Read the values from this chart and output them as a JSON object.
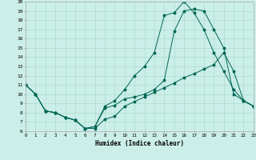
{
  "xlabel": "Humidex (Indice chaleur)",
  "bg_color": "#cceee8",
  "grid_color": "#aaddcc",
  "line_color": "#006655",
  "xlim": [
    0,
    23
  ],
  "ylim": [
    6,
    20
  ],
  "xticks": [
    0,
    1,
    2,
    3,
    4,
    5,
    6,
    7,
    8,
    9,
    10,
    11,
    12,
    13,
    14,
    15,
    16,
    17,
    18,
    19,
    20,
    21,
    22,
    23
  ],
  "yticks": [
    6,
    7,
    8,
    9,
    10,
    11,
    12,
    13,
    14,
    15,
    16,
    17,
    18,
    19,
    20
  ],
  "curve1_x": [
    0,
    1,
    2,
    3,
    4,
    5,
    6,
    7,
    8,
    9,
    10,
    11,
    12,
    13,
    14,
    15,
    16,
    17,
    18,
    19,
    20,
    21,
    22,
    23
  ],
  "curve1_y": [
    11,
    10,
    8.2,
    8,
    7.5,
    7.2,
    6.3,
    6.3,
    7.3,
    7.6,
    8.7,
    9.2,
    9.7,
    10.2,
    10.7,
    11.2,
    11.8,
    12.2,
    12.7,
    13.2,
    14.5,
    12.5,
    9.3,
    8.7
  ],
  "curve2_x": [
    0,
    1,
    2,
    3,
    4,
    5,
    6,
    7,
    8,
    9,
    10,
    11,
    12,
    13,
    14,
    15,
    16,
    17,
    18,
    19,
    20,
    21,
    22,
    23
  ],
  "curve2_y": [
    11,
    10,
    8.2,
    8,
    7.5,
    7.2,
    6.3,
    6.5,
    8.7,
    9.3,
    10.5,
    12.0,
    13.0,
    14.5,
    18.5,
    18.8,
    20.0,
    18.8,
    17.0,
    14.5,
    12.5,
    10.5,
    9.3,
    8.7
  ],
  "curve3_x": [
    0,
    1,
    2,
    3,
    4,
    5,
    6,
    7,
    8,
    9,
    10,
    11,
    12,
    13,
    14,
    15,
    16,
    17,
    18,
    19,
    20,
    21,
    22,
    23
  ],
  "curve3_y": [
    11,
    10,
    8.2,
    8,
    7.5,
    7.2,
    6.3,
    6.5,
    8.5,
    8.8,
    9.5,
    9.7,
    10.0,
    10.5,
    11.5,
    16.8,
    19.0,
    19.2,
    19.0,
    17.0,
    15.0,
    10.0,
    9.3,
    8.7
  ]
}
